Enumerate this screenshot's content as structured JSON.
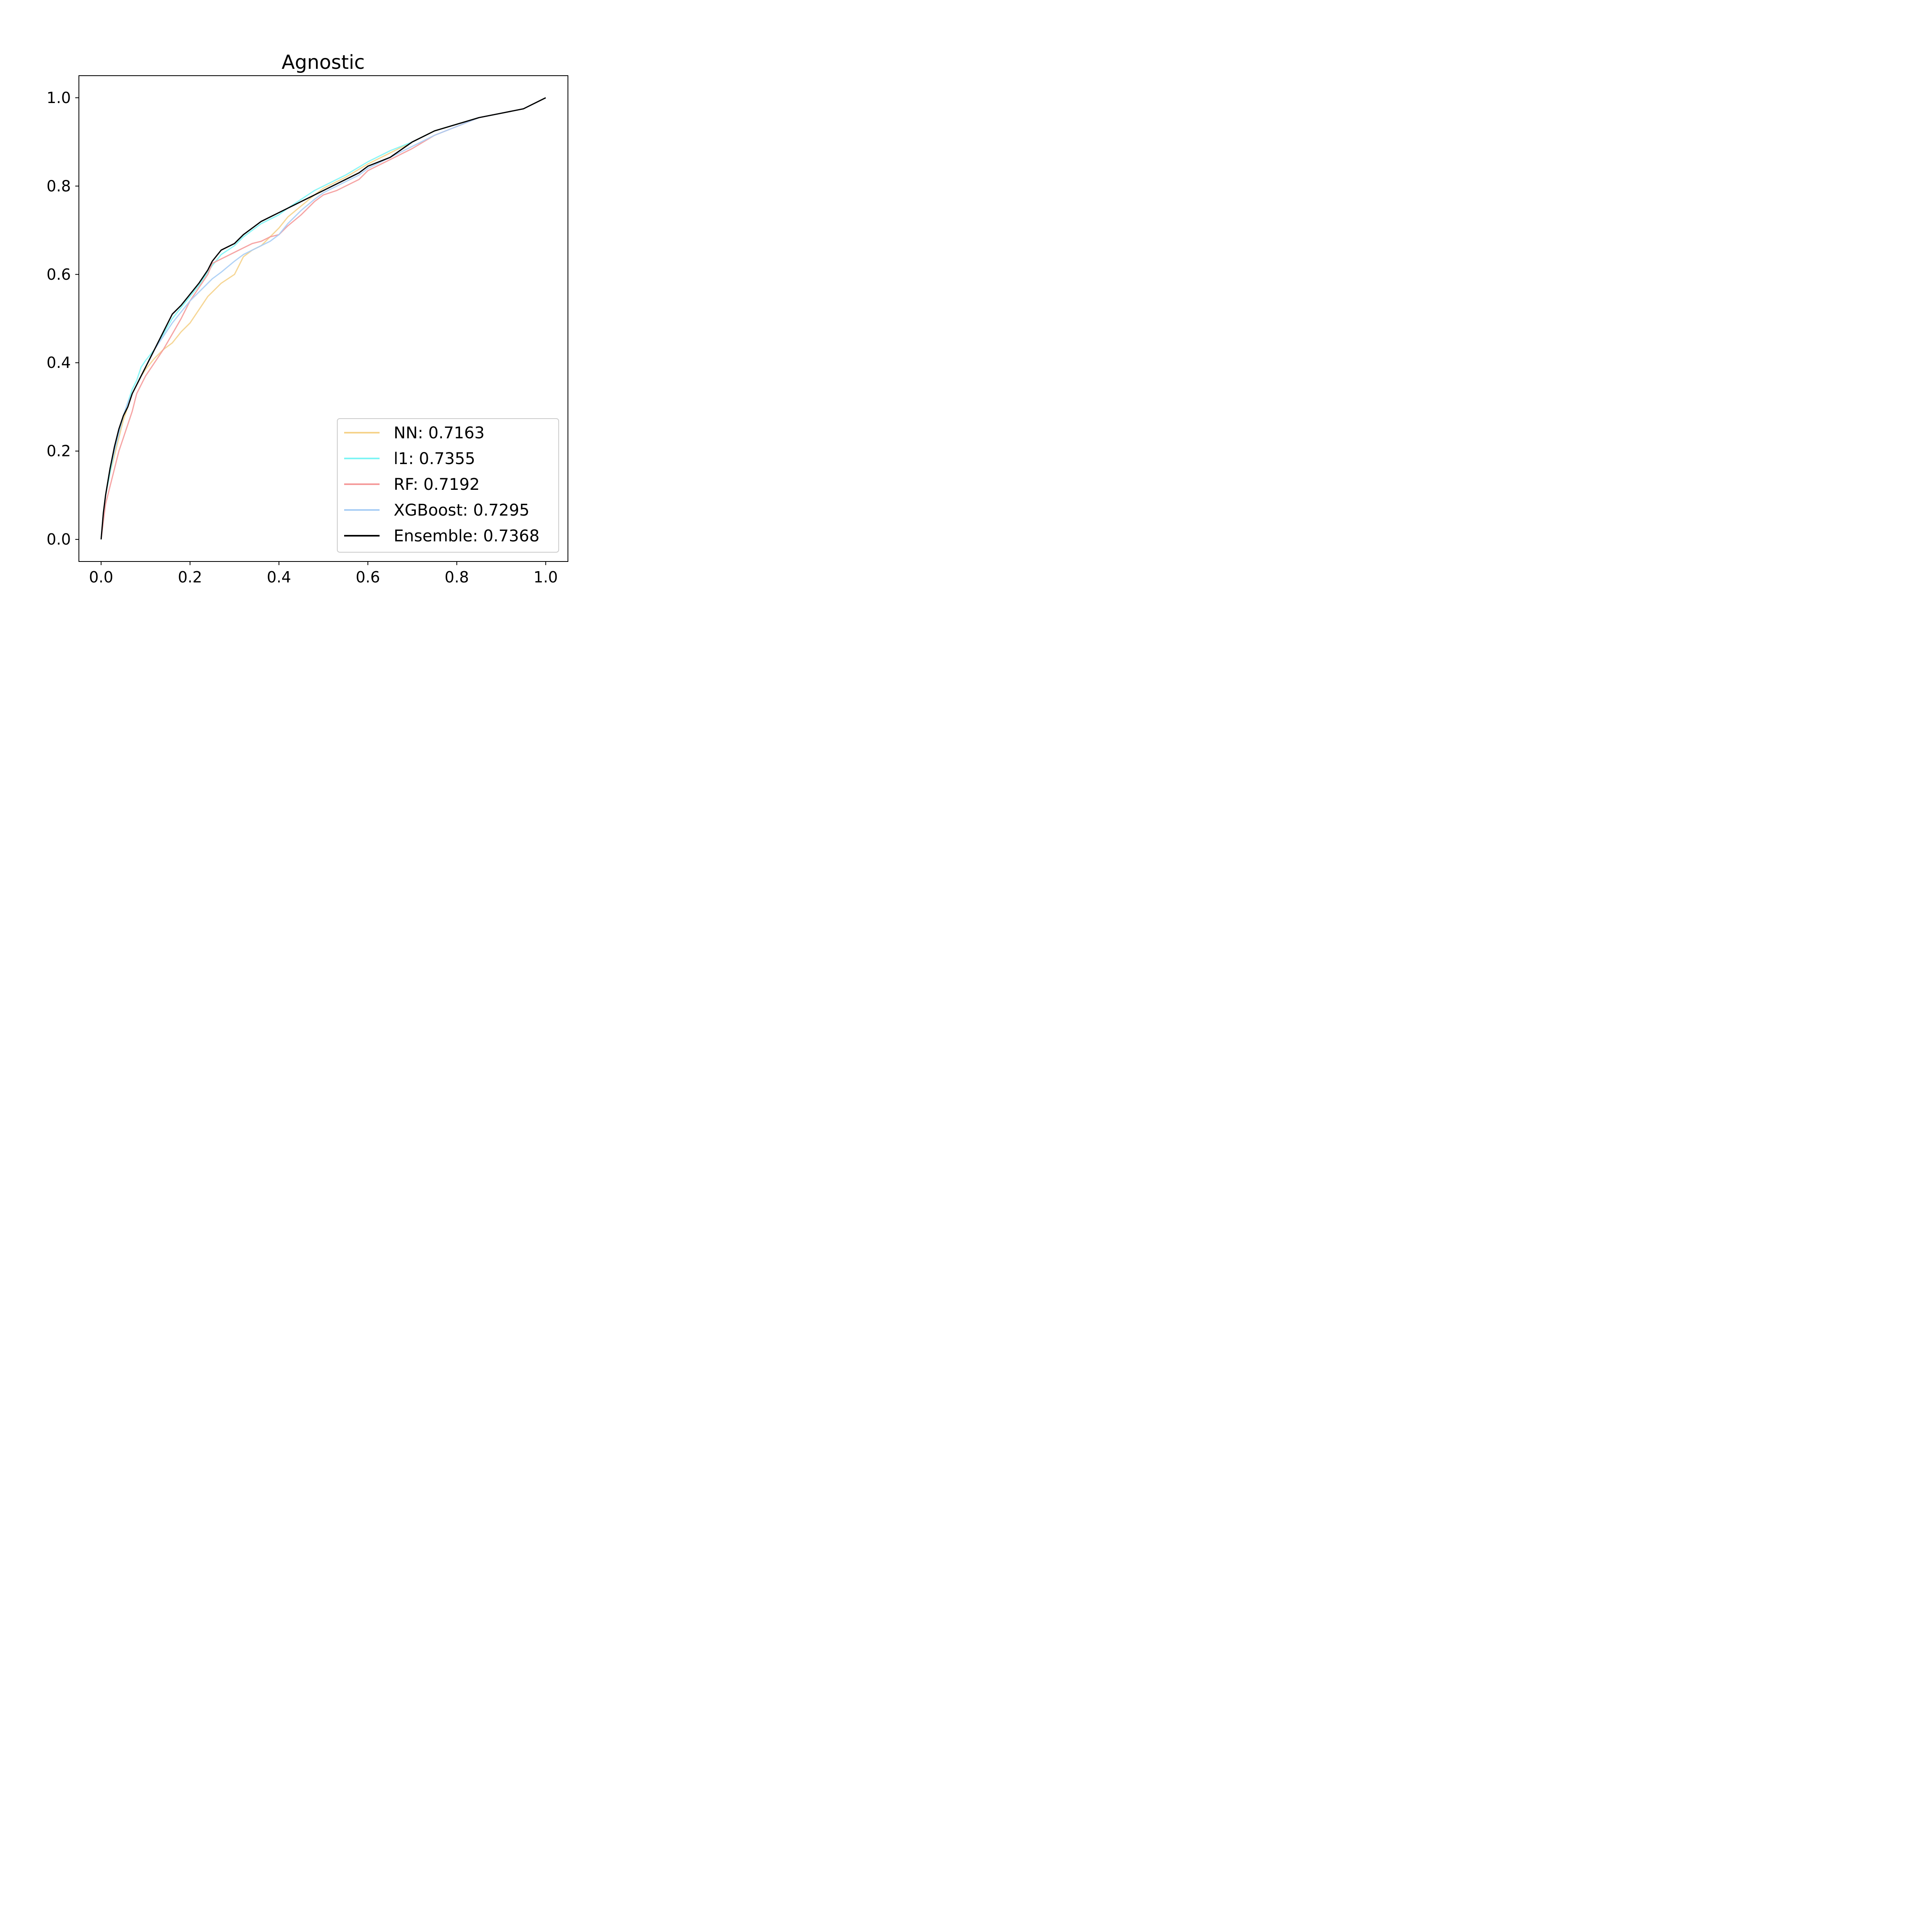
{
  "chart_data": {
    "type": "line",
    "title": "Agnostic",
    "xlabel": "",
    "ylabel": "",
    "xlim": [
      -0.05,
      1.05
    ],
    "ylim": [
      -0.05,
      1.05
    ],
    "xticks": [
      0.0,
      0.2,
      0.4,
      0.6,
      0.8,
      1.0
    ],
    "yticks": [
      0.0,
      0.2,
      0.4,
      0.6,
      0.8,
      1.0
    ],
    "xtick_labels": [
      "0.0",
      "0.2",
      "0.4",
      "0.6",
      "0.8",
      "1.0"
    ],
    "ytick_labels": [
      "0.0",
      "0.2",
      "0.4",
      "0.6",
      "0.8",
      "1.0"
    ],
    "grid": false,
    "legend_position": "lower-right",
    "series": [
      {
        "name": "NN: 0.7163",
        "color": "#f5d28a",
        "x": [
          0,
          0.005,
          0.01,
          0.02,
          0.03,
          0.04,
          0.05,
          0.06,
          0.07,
          0.08,
          0.09,
          0.1,
          0.12,
          0.14,
          0.16,
          0.18,
          0.2,
          0.22,
          0.24,
          0.25,
          0.27,
          0.3,
          0.32,
          0.34,
          0.36,
          0.38,
          0.4,
          0.42,
          0.45,
          0.48,
          0.5,
          0.52,
          0.55,
          0.6,
          0.65,
          0.7,
          0.75,
          0.8,
          0.85,
          0.9,
          0.95,
          1.0
        ],
        "y": [
          0,
          0.06,
          0.1,
          0.15,
          0.19,
          0.23,
          0.27,
          0.3,
          0.33,
          0.35,
          0.37,
          0.385,
          0.41,
          0.43,
          0.445,
          0.47,
          0.49,
          0.52,
          0.55,
          0.56,
          0.58,
          0.6,
          0.64,
          0.655,
          0.665,
          0.685,
          0.705,
          0.73,
          0.755,
          0.78,
          0.795,
          0.805,
          0.82,
          0.85,
          0.875,
          0.9,
          0.925,
          0.94,
          0.955,
          0.965,
          0.975,
          1.0
        ]
      },
      {
        "name": "l1: 0.7355",
        "color": "#7ef5f5",
        "x": [
          0,
          0.005,
          0.01,
          0.02,
          0.03,
          0.04,
          0.05,
          0.06,
          0.07,
          0.08,
          0.09,
          0.1,
          0.12,
          0.14,
          0.16,
          0.18,
          0.2,
          0.22,
          0.24,
          0.25,
          0.27,
          0.3,
          0.32,
          0.34,
          0.36,
          0.38,
          0.4,
          0.42,
          0.45,
          0.48,
          0.5,
          0.53,
          0.55,
          0.6,
          0.65,
          0.7,
          0.75,
          0.8,
          0.85,
          0.9,
          0.95,
          1.0
        ],
        "y": [
          0,
          0.06,
          0.1,
          0.15,
          0.2,
          0.24,
          0.28,
          0.31,
          0.34,
          0.36,
          0.39,
          0.405,
          0.43,
          0.465,
          0.5,
          0.525,
          0.55,
          0.575,
          0.605,
          0.62,
          0.645,
          0.665,
          0.685,
          0.7,
          0.715,
          0.725,
          0.735,
          0.75,
          0.77,
          0.79,
          0.8,
          0.815,
          0.825,
          0.855,
          0.88,
          0.9,
          0.925,
          0.94,
          0.955,
          0.965,
          0.975,
          1.0
        ]
      },
      {
        "name": "RF: 0.7192",
        "color": "#f59a9a",
        "x": [
          0,
          0.005,
          0.01,
          0.02,
          0.03,
          0.04,
          0.05,
          0.06,
          0.07,
          0.08,
          0.09,
          0.1,
          0.12,
          0.14,
          0.16,
          0.18,
          0.2,
          0.22,
          0.24,
          0.25,
          0.27,
          0.3,
          0.32,
          0.34,
          0.36,
          0.38,
          0.4,
          0.42,
          0.45,
          0.48,
          0.5,
          0.53,
          0.55,
          0.58,
          0.6,
          0.65,
          0.7,
          0.75,
          0.8,
          0.85,
          0.9,
          0.95,
          1.0
        ],
        "y": [
          0,
          0.04,
          0.08,
          0.12,
          0.16,
          0.2,
          0.23,
          0.26,
          0.29,
          0.33,
          0.35,
          0.37,
          0.4,
          0.43,
          0.465,
          0.5,
          0.54,
          0.57,
          0.6,
          0.625,
          0.635,
          0.65,
          0.66,
          0.67,
          0.675,
          0.685,
          0.69,
          0.71,
          0.735,
          0.765,
          0.78,
          0.79,
          0.8,
          0.815,
          0.835,
          0.86,
          0.885,
          0.915,
          0.935,
          0.955,
          0.965,
          0.975,
          1.0
        ]
      },
      {
        "name": "XGBoost: 0.7295",
        "color": "#a8cdf5",
        "x": [
          0,
          0.005,
          0.01,
          0.02,
          0.03,
          0.04,
          0.05,
          0.06,
          0.07,
          0.08,
          0.09,
          0.1,
          0.12,
          0.14,
          0.16,
          0.18,
          0.2,
          0.22,
          0.24,
          0.25,
          0.27,
          0.3,
          0.32,
          0.34,
          0.36,
          0.38,
          0.4,
          0.42,
          0.45,
          0.48,
          0.5,
          0.53,
          0.55,
          0.58,
          0.6,
          0.65,
          0.7,
          0.75,
          0.8,
          0.85,
          0.9,
          0.95,
          1.0
        ],
        "y": [
          0,
          0.06,
          0.1,
          0.16,
          0.2,
          0.24,
          0.28,
          0.31,
          0.33,
          0.35,
          0.37,
          0.39,
          0.43,
          0.46,
          0.49,
          0.515,
          0.54,
          0.56,
          0.58,
          0.59,
          0.605,
          0.63,
          0.645,
          0.655,
          0.665,
          0.675,
          0.69,
          0.715,
          0.745,
          0.77,
          0.785,
          0.8,
          0.81,
          0.825,
          0.84,
          0.865,
          0.89,
          0.915,
          0.935,
          0.955,
          0.965,
          0.975,
          1.0
        ]
      },
      {
        "name": "Ensemble: 0.7368",
        "color": "#000000",
        "x": [
          0,
          0.005,
          0.01,
          0.02,
          0.03,
          0.04,
          0.05,
          0.06,
          0.07,
          0.08,
          0.09,
          0.1,
          0.12,
          0.14,
          0.16,
          0.18,
          0.2,
          0.22,
          0.24,
          0.25,
          0.27,
          0.3,
          0.32,
          0.34,
          0.36,
          0.38,
          0.4,
          0.42,
          0.45,
          0.48,
          0.5,
          0.53,
          0.55,
          0.58,
          0.6,
          0.65,
          0.7,
          0.75,
          0.8,
          0.85,
          0.9,
          0.95,
          1.0
        ],
        "y": [
          0,
          0.06,
          0.1,
          0.16,
          0.21,
          0.25,
          0.28,
          0.3,
          0.33,
          0.35,
          0.37,
          0.39,
          0.43,
          0.47,
          0.51,
          0.53,
          0.555,
          0.58,
          0.61,
          0.63,
          0.655,
          0.67,
          0.69,
          0.705,
          0.72,
          0.73,
          0.74,
          0.75,
          0.765,
          0.78,
          0.79,
          0.805,
          0.815,
          0.83,
          0.845,
          0.865,
          0.9,
          0.925,
          0.94,
          0.955,
          0.965,
          0.975,
          1.0
        ]
      }
    ]
  }
}
